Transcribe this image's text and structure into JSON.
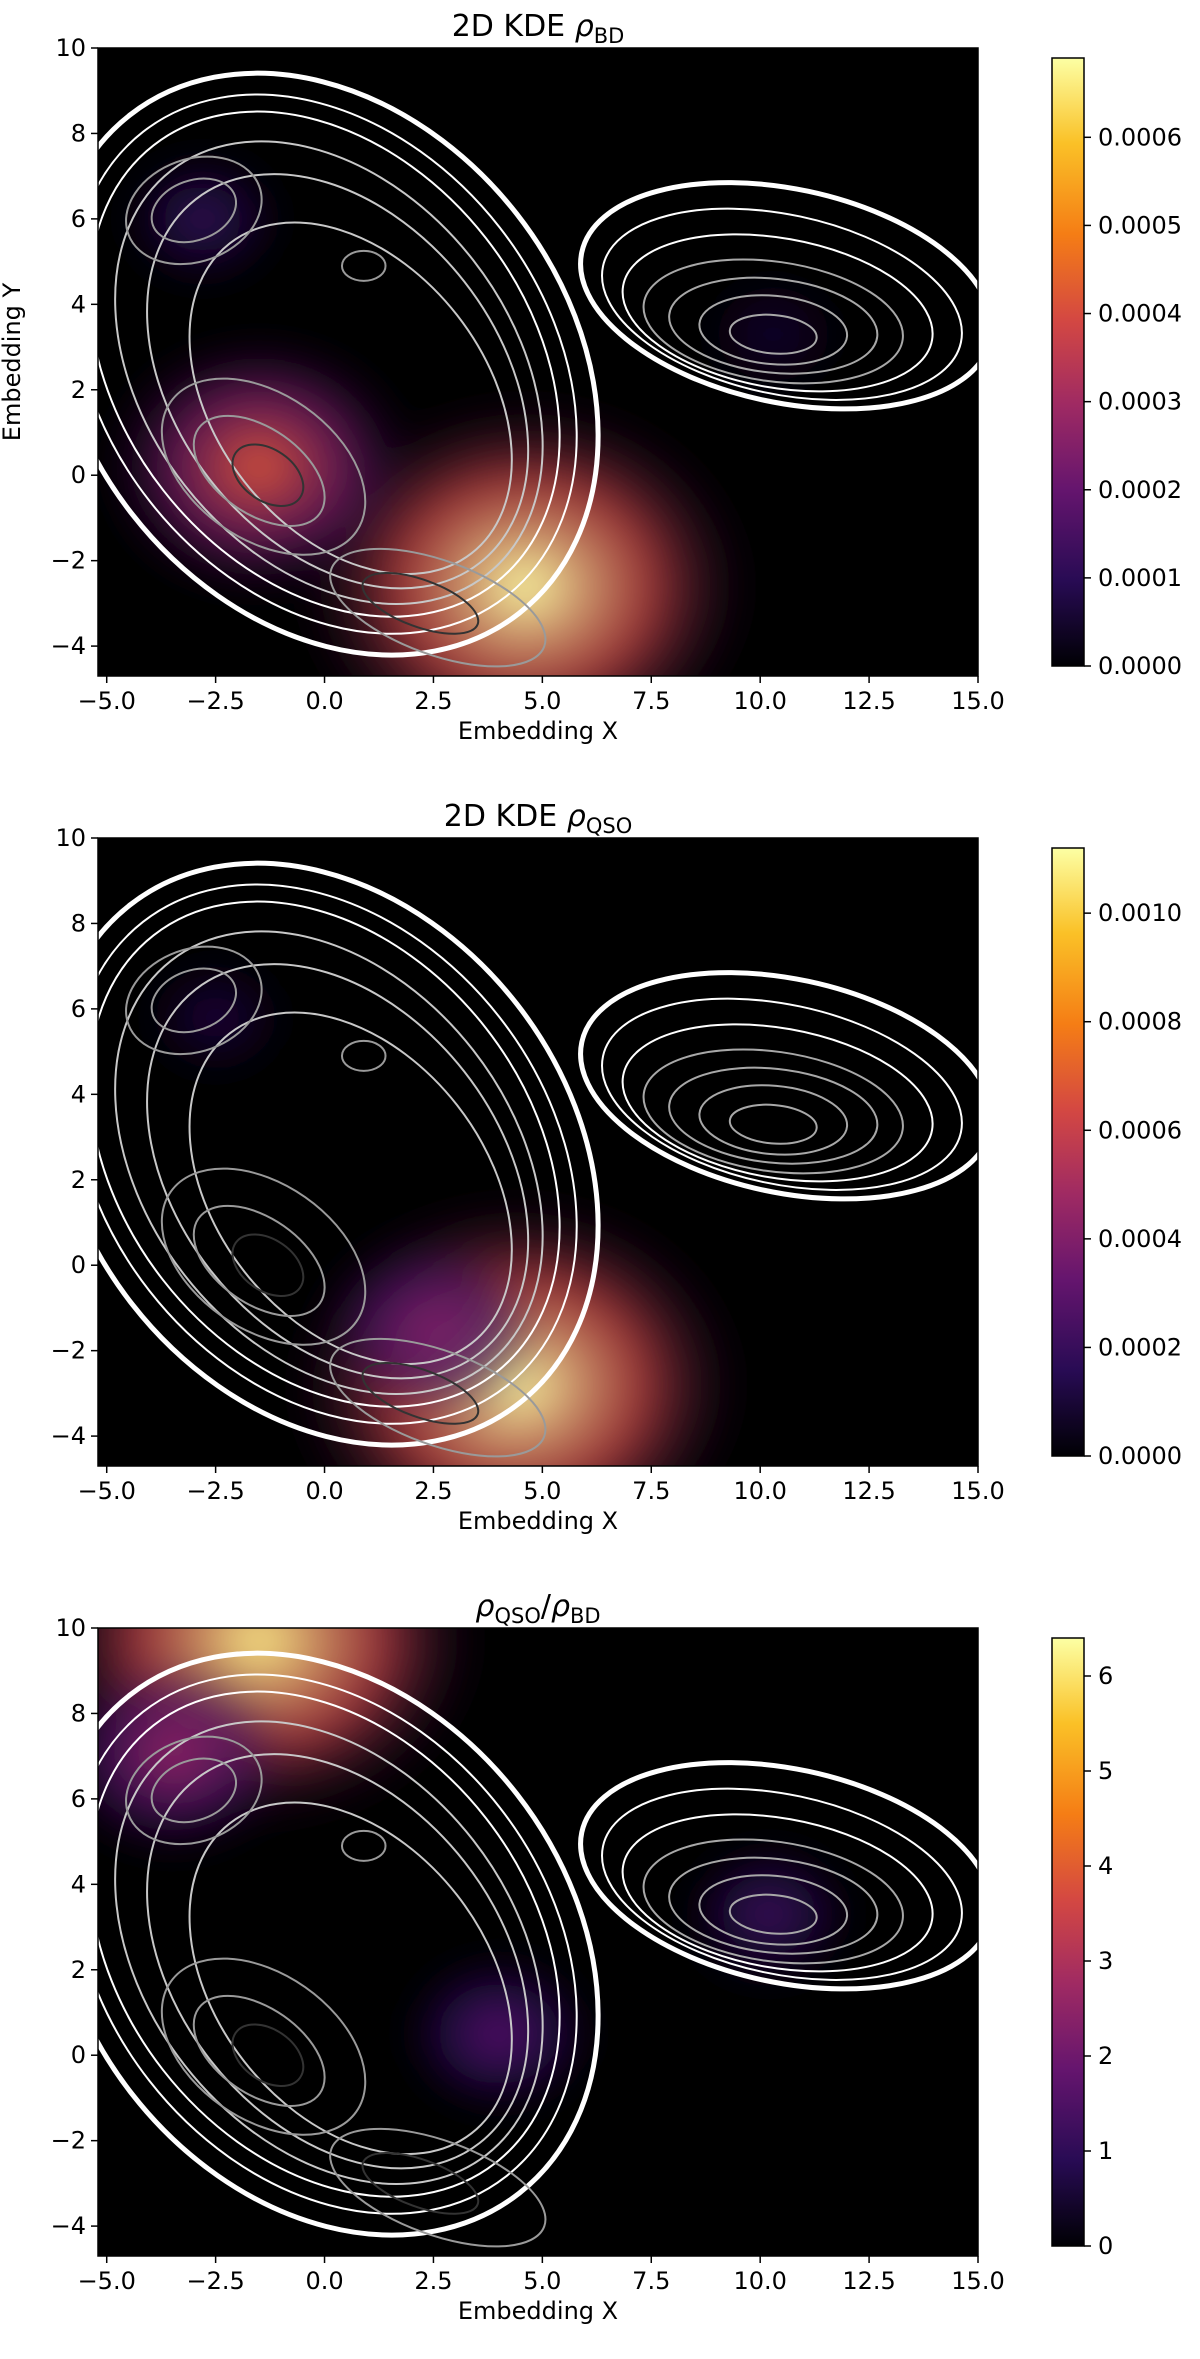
{
  "colors": {
    "colormap": "inferno",
    "background": "#000000",
    "outer_contour": "#ffffff",
    "inner_contour": "#9a9a9a",
    "core_contour": "#333333"
  },
  "chart_data": [
    {
      "type": "heatmap",
      "title_prefix": "2D KDE ",
      "title_symbol": "ρ",
      "title_sub": "BD",
      "xlabel": "Embedding X",
      "ylabel": "Embedding Y",
      "xlim": [
        -5.2,
        15.0
      ],
      "ylim": [
        -4.7,
        10.0
      ],
      "x_ticks": [
        -5.0,
        -2.5,
        0.0,
        2.5,
        5.0,
        7.5,
        10.0,
        12.5,
        15.0
      ],
      "x_tick_labels": [
        "−5.0",
        "−2.5",
        "0.0",
        "2.5",
        "5.0",
        "7.5",
        "10.0",
        "12.5",
        "15.0"
      ],
      "y_ticks": [
        -4,
        -2,
        0,
        2,
        4,
        6,
        8,
        10
      ],
      "y_tick_labels": [
        "−4",
        "−2",
        "0",
        "2",
        "4",
        "6",
        "8",
        "10"
      ],
      "colorbar": {
        "vmin": 0.0,
        "vmax": 0.00069,
        "ticks": [
          0.0,
          0.0001,
          0.0002,
          0.0003,
          0.0004,
          0.0005,
          0.0006
        ],
        "tick_labels": [
          "0.0000",
          "0.0001",
          "0.0002",
          "0.0003",
          "0.0004",
          "0.0005",
          "0.0006"
        ]
      },
      "density_peaks": [
        {
          "x": 4.6,
          "y": -2.6,
          "value": 0.00069
        },
        {
          "x": -1.5,
          "y": 0.2,
          "value": 0.00042
        },
        {
          "x": -2.8,
          "y": 6.0,
          "value": 0.00012
        },
        {
          "x": 10.3,
          "y": 3.3,
          "value": 6e-05
        }
      ]
    },
    {
      "type": "heatmap",
      "title_prefix": "2D KDE ",
      "title_symbol": "ρ",
      "title_sub": "QSO",
      "xlabel": "Embedding X",
      "ylabel": "",
      "xlim": [
        -5.2,
        15.0
      ],
      "ylim": [
        -4.7,
        10.0
      ],
      "x_ticks": [
        -5.0,
        -2.5,
        0.0,
        2.5,
        5.0,
        7.5,
        10.0,
        12.5,
        15.0
      ],
      "x_tick_labels": [
        "−5.0",
        "−2.5",
        "0.0",
        "2.5",
        "5.0",
        "7.5",
        "10.0",
        "12.5",
        "15.0"
      ],
      "y_ticks": [
        -4,
        -2,
        0,
        2,
        4,
        6,
        8,
        10
      ],
      "y_tick_labels": [
        "−4",
        "−2",
        "0",
        "2",
        "4",
        "6",
        "8",
        "10"
      ],
      "colorbar": {
        "vmin": 0.0,
        "vmax": 0.00112,
        "ticks": [
          0.0,
          0.0002,
          0.0004,
          0.0006,
          0.0008,
          0.001
        ],
        "tick_labels": [
          "0.0000",
          "0.0002",
          "0.0004",
          "0.0006",
          "0.0008",
          "0.0010"
        ]
      },
      "density_peaks": [
        {
          "x": 4.4,
          "y": -2.8,
          "value": 0.00112
        },
        {
          "x": 2.5,
          "y": -1.5,
          "value": 0.0004
        },
        {
          "x": -2.5,
          "y": 5.8,
          "value": 0.00012
        }
      ]
    },
    {
      "type": "heatmap",
      "title_prefix": "",
      "title_symbol": "ρ",
      "title_sub": "QSO",
      "title_slash": "/",
      "title_symbol2": "ρ",
      "title_sub2": "BD",
      "xlabel": "Embedding X",
      "ylabel": "",
      "xlim": [
        -5.2,
        15.0
      ],
      "ylim": [
        -4.7,
        10.0
      ],
      "x_ticks": [
        -5.0,
        -2.5,
        0.0,
        2.5,
        5.0,
        7.5,
        10.0,
        12.5,
        15.0
      ],
      "x_tick_labels": [
        "−5.0",
        "−2.5",
        "0.0",
        "2.5",
        "5.0",
        "7.5",
        "10.0",
        "12.5",
        "15.0"
      ],
      "y_ticks": [
        -4,
        -2,
        0,
        2,
        4,
        6,
        8,
        10
      ],
      "y_tick_labels": [
        "−4",
        "−2",
        "0",
        "2",
        "4",
        "6",
        "8",
        "10"
      ],
      "colorbar": {
        "vmin": 0.0,
        "vmax": 6.4,
        "ticks": [
          0,
          1,
          2,
          3,
          4,
          5,
          6
        ],
        "tick_labels": [
          "0",
          "1",
          "2",
          "3",
          "4",
          "5",
          "6"
        ]
      },
      "density_peaks": [
        {
          "x": -1.5,
          "y": 9.7,
          "value": 6.2
        },
        {
          "x": -3.5,
          "y": 7.0,
          "value": 2.6
        },
        {
          "x": 4.0,
          "y": 0.5,
          "value": 1.7
        },
        {
          "x": 10.2,
          "y": 3.3,
          "value": 1.3
        }
      ]
    }
  ]
}
